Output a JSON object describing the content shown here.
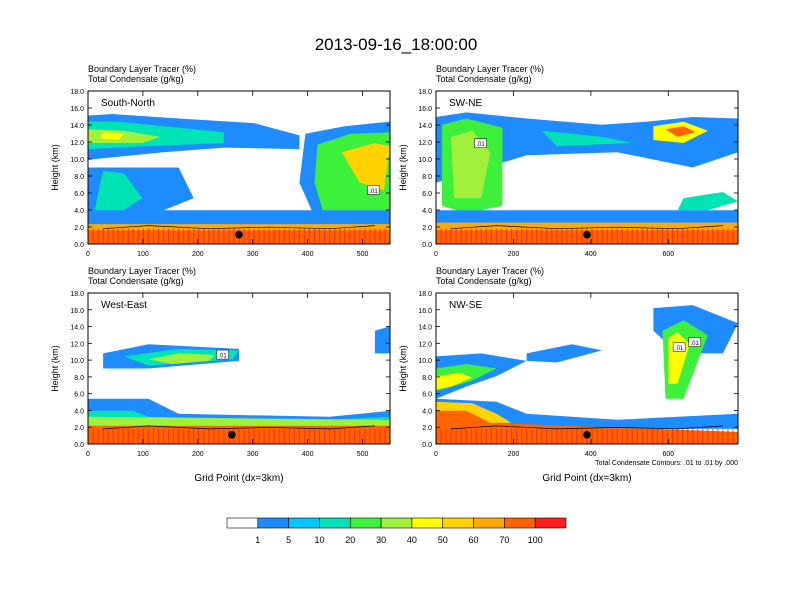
{
  "title": "2013-09-16_18:00:00",
  "colors": {
    "fill_scale": [
      "#ffffff",
      "#1e8cff",
      "#00c8ff",
      "#00e3b4",
      "#3cf03c",
      "#a0f03c",
      "#ffff00",
      "#ffd200",
      "#ffaa00",
      "#ff6400",
      "#ff1e1e"
    ],
    "contour": "#000000",
    "marker": "#000000"
  },
  "chart_data": [
    {
      "type": "heatmap",
      "panel_label": "South-North",
      "subtitle_line1": "Boundary Layer Tracer    (%)",
      "subtitle_line2": "Total Condensate    (g/kg)",
      "ylabel": "Height (km)",
      "xlabel": "",
      "xlim": [
        0,
        550
      ],
      "ylim": [
        0,
        18
      ],
      "xticks": [
        "0",
        "100",
        "200",
        "300",
        "400",
        "500"
      ],
      "yticks": [
        "0.0",
        "2.0",
        "4.0",
        "6.0",
        "8.0",
        "10.0",
        "12.0",
        "14.0",
        "16.0",
        "18.0"
      ],
      "contour_labels": [
        {
          "text": ".01",
          "x": 520,
          "y": 6.3
        }
      ],
      "marker_x": 275,
      "marker_y": 1.1
    },
    {
      "type": "heatmap",
      "panel_label": "SW-NE",
      "subtitle_line1": "Boundary Layer Tracer    (%)",
      "subtitle_line2": "Total Condensate    (g/kg)",
      "ylabel": "Height (km)",
      "xlabel": "",
      "xlim": [
        0,
        780
      ],
      "ylim": [
        0,
        18
      ],
      "xticks": [
        "0",
        "200",
        "400",
        "600"
      ],
      "yticks": [
        "0.0",
        "2.0",
        "4.0",
        "6.0",
        "8.0",
        "10.0",
        "12.0",
        "14.0",
        "16.0",
        "18.0"
      ],
      "contour_labels": [
        {
          "text": ".01",
          "x": 115,
          "y": 11.8
        }
      ],
      "marker_x": 390,
      "marker_y": 1.1
    },
    {
      "type": "heatmap",
      "panel_label": "West-East",
      "subtitle_line1": "Boundary Layer Tracer    (%)",
      "subtitle_line2": "Total Condensate    (g/kg)",
      "ylabel": "Height (km)",
      "xlabel": "Grid Point (dx=3km)",
      "xlim": [
        0,
        550
      ],
      "ylim": [
        0,
        18
      ],
      "xticks": [
        "0",
        "100",
        "200",
        "300",
        "400",
        "500"
      ],
      "yticks": [
        "0.0",
        "2.0",
        "4.0",
        "6.0",
        "8.0",
        "10.0",
        "12.0",
        "14.0",
        "16.0",
        "18.0"
      ],
      "contour_labels": [
        {
          "text": ".01",
          "x": 245,
          "y": 10.6
        }
      ],
      "marker_x": 262,
      "marker_y": 1.1
    },
    {
      "type": "heatmap",
      "panel_label": "NW-SE",
      "subtitle_line1": "Boundary Layer Tracer    (%)",
      "subtitle_line2": "Total Condensate    (g/kg)",
      "ylabel": "Height (km)",
      "xlabel": "Grid Point (dx=3km)",
      "xlim": [
        0,
        780
      ],
      "ylim": [
        0,
        18
      ],
      "xticks": [
        "0",
        "200",
        "400",
        "600"
      ],
      "yticks": [
        "0.0",
        "2.0",
        "4.0",
        "6.0",
        "8.0",
        "10.0",
        "12.0",
        "14.0",
        "16.0",
        "18.0"
      ],
      "contour_labels": [
        {
          "text": ".01",
          "x": 628,
          "y": 11.5
        },
        {
          "text": ".01",
          "x": 668,
          "y": 12.1
        }
      ],
      "footnote": "Total Condensate Contours: .01 to .01 by .000",
      "marker_x": 390,
      "marker_y": 1.1
    }
  ],
  "colorbar": {
    "labels": [
      "1",
      "5",
      "10",
      "20",
      "30",
      "40",
      "50",
      "60",
      "70",
      "100"
    ]
  }
}
